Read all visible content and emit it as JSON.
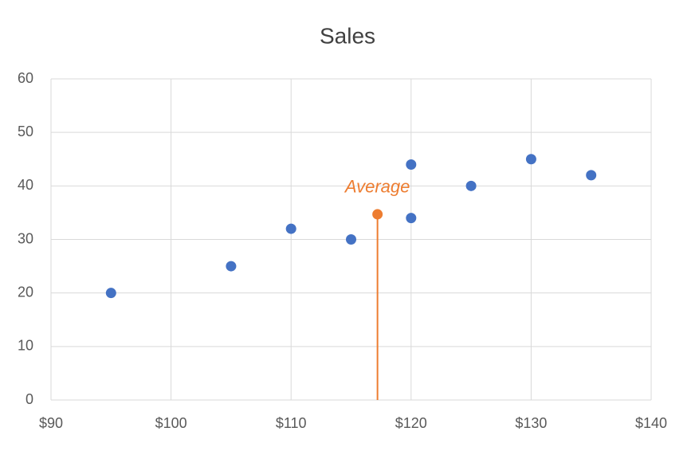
{
  "chart_data": {
    "type": "scatter",
    "title": "Sales",
    "x": [
      95,
      105,
      110,
      115,
      120,
      120,
      125,
      130,
      135
    ],
    "values": [
      20,
      25,
      32,
      30,
      44,
      34,
      40,
      45,
      42
    ],
    "color": "#4472c4",
    "average": {
      "label": "Average",
      "x": 117.2,
      "y": 34.7,
      "color": "#ed7d31"
    },
    "xlim": [
      90,
      140
    ],
    "xticks": [
      {
        "value": 90,
        "label": "$90"
      },
      {
        "value": 100,
        "label": "$100"
      },
      {
        "value": 110,
        "label": "$110"
      },
      {
        "value": 120,
        "label": "$120"
      },
      {
        "value": 130,
        "label": "$130"
      },
      {
        "value": 140,
        "label": "$140"
      }
    ],
    "ylim": [
      0,
      60
    ],
    "yticks": [
      0,
      10,
      20,
      30,
      40,
      50,
      60
    ],
    "grid": true
  }
}
